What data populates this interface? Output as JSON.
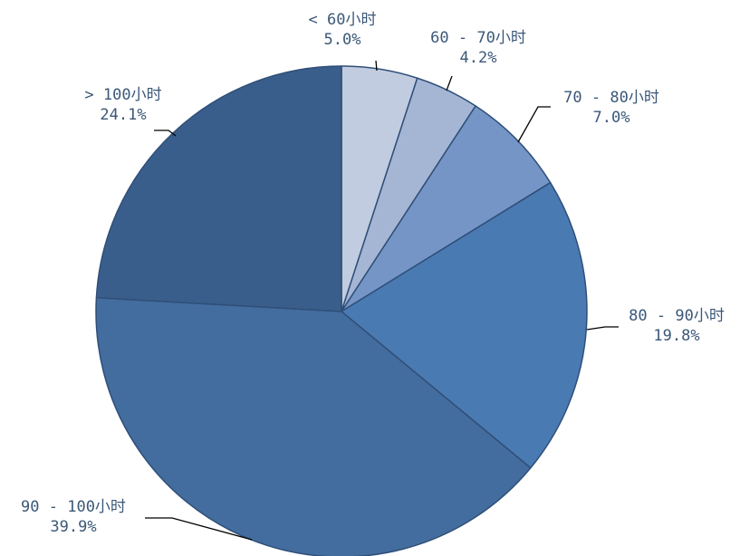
{
  "chart_data": {
    "type": "pie",
    "title": "",
    "start_angle_deg": 0,
    "direction": "clockwise",
    "slices": [
      {
        "category": "< 60小时",
        "value": 5.0,
        "label": "5.0%",
        "color": "#c1cce0"
      },
      {
        "category": "60 - 70小时",
        "value": 4.2,
        "label": "4.2%",
        "color": "#a5b6d5"
      },
      {
        "category": "70 - 80小时",
        "value": 7.0,
        "label": "7.0%",
        "color": "#7595c6"
      },
      {
        "category": "80 - 90小时",
        "value": 19.8,
        "label": "19.8%",
        "color": "#4a7ab2"
      },
      {
        "category": "90 - 100小时",
        "value": 39.9,
        "label": "39.9%",
        "color": "#436d9e"
      },
      {
        "category": "> 100小时",
        "value": 24.1,
        "label": "24.1%",
        "color": "#3a5e8b"
      }
    ],
    "legend": "none",
    "label_color": "#3b5878",
    "border_color": "#2f4f78"
  }
}
